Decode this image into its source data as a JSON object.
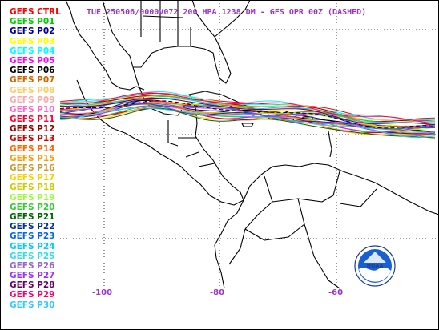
{
  "title": "TUE 250506/0000V072  200 HPA 1238 DM - GFS OPR 00Z (DASHED)",
  "legend": [
    {
      "label": "GEFS CTRL",
      "color": "#ff0000"
    },
    {
      "label": "GEFS P01",
      "color": "#00cc00"
    },
    {
      "label": "GEFS P02",
      "color": "#000099"
    },
    {
      "label": "GEFS P03",
      "color": "#ffff00"
    },
    {
      "label": "GEFS P04",
      "color": "#00ffff"
    },
    {
      "label": "GEFS P05",
      "color": "#ff00ff"
    },
    {
      "label": "GEFS P06",
      "color": "#000000"
    },
    {
      "label": "GEFS P07",
      "color": "#cc6600"
    },
    {
      "label": "GEFS P08",
      "color": "#ffcc66"
    },
    {
      "label": "GEFS P09",
      "color": "#ffaaaa"
    },
    {
      "label": "GEFS P10",
      "color": "#ff66cc"
    },
    {
      "label": "GEFS P11",
      "color": "#ff0033"
    },
    {
      "label": "GEFS P12",
      "color": "#990000"
    },
    {
      "label": "GEFS P13",
      "color": "#cc0000"
    },
    {
      "label": "GEFS P14",
      "color": "#ff6600"
    },
    {
      "label": "GEFS P15",
      "color": "#ff9900"
    },
    {
      "label": "GEFS P16",
      "color": "#cc9933"
    },
    {
      "label": "GEFS P17",
      "color": "#ffcc00"
    },
    {
      "label": "GEFS P18",
      "color": "#cccc00"
    },
    {
      "label": "GEFS P19",
      "color": "#99ff33"
    },
    {
      "label": "GEFS P20",
      "color": "#33cc33"
    },
    {
      "label": "GEFS P21",
      "color": "#006600"
    },
    {
      "label": "GEFS P22",
      "color": "#003399"
    },
    {
      "label": "GEFS P23",
      "color": "#0066ff"
    },
    {
      "label": "GEFS P24",
      "color": "#00ccff"
    },
    {
      "label": "GEFS P25",
      "color": "#33ddee"
    },
    {
      "label": "GEFS P26",
      "color": "#9966cc"
    },
    {
      "label": "GEFS P27",
      "color": "#9933ff"
    },
    {
      "label": "GEFS P28",
      "color": "#660066"
    },
    {
      "label": "GEFS P29",
      "color": "#ff0066"
    },
    {
      "label": "GEFS P30",
      "color": "#33ccff"
    }
  ],
  "longitude_labels": [
    "-100",
    "-80",
    "-60"
  ],
  "text_color": "#9933cc",
  "opr_color": "#000000",
  "logo_text": "NOAA"
}
